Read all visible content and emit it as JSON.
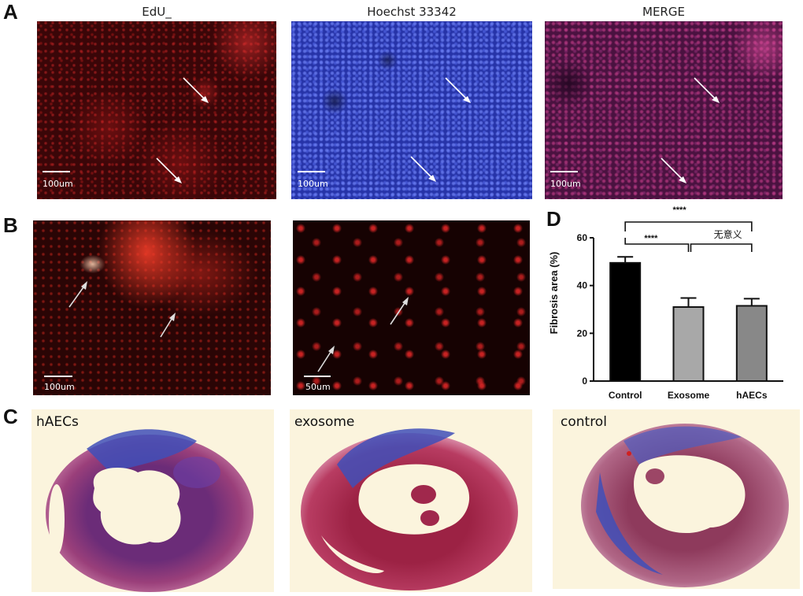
{
  "panels": {
    "A": {
      "letter": "A",
      "titles": [
        "EdU_",
        "Hoechst 33342",
        "MERGE"
      ],
      "scale": [
        "100um",
        "100um",
        "100um"
      ]
    },
    "B": {
      "letter": "B",
      "scale": [
        "100um",
        "50um"
      ]
    },
    "C": {
      "letter": "C",
      "labels": [
        "hAECs",
        "exosome",
        "control"
      ]
    },
    "D": {
      "letter": "D"
    }
  },
  "colors": {
    "edu_red": "#c81e1e",
    "hoechst_blue": "#3d4fd8",
    "merge_magenta": "#b0306a",
    "masson_blue": "#3f4fb8",
    "masson_red": "#b8284a",
    "bar_control": "#000000",
    "bar_exosome": "#a8a8a8",
    "bar_haecs": "#888888"
  },
  "chart_data": {
    "type": "bar",
    "categories": [
      "Control",
      "Exosome",
      "hAECs"
    ],
    "values": [
      49.5,
      31,
      31.5
    ],
    "errors": [
      2.5,
      3.8,
      3.0
    ],
    "ylabel": "Fibrosis area (%)",
    "xlabel": "",
    "ylim": [
      0,
      60
    ],
    "yticks": [
      0,
      20,
      40,
      60
    ],
    "significance": [
      {
        "from": "Control",
        "to": "hAECs",
        "label": "****"
      },
      {
        "from": "Control",
        "to": "Exosome",
        "label": "****"
      },
      {
        "from": "Exosome",
        "to": "hAECs",
        "label": "无意义"
      }
    ]
  }
}
